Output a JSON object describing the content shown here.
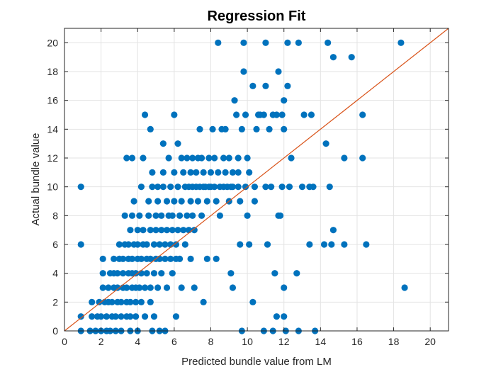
{
  "chart_data": {
    "type": "scatter",
    "title": "Regression Fit",
    "xlabel": "Predicted bundle value from LM",
    "ylabel": "Actual bundle value",
    "xlim": [
      0,
      21
    ],
    "ylim": [
      0,
      21
    ],
    "xticks": [
      0,
      2,
      4,
      6,
      8,
      10,
      12,
      14,
      16,
      18,
      20
    ],
    "yticks": [
      0,
      2,
      4,
      6,
      8,
      10,
      12,
      14,
      16,
      18,
      20
    ],
    "grid": true,
    "colors": {
      "points": "#0072BD",
      "line": "#D95319"
    },
    "reference_line": {
      "type": "identity",
      "from": [
        0,
        0
      ],
      "to": [
        21,
        21
      ]
    },
    "series": [
      {
        "points": [
          [
            0.9,
            10
          ],
          [
            0.9,
            6
          ],
          [
            0.9,
            1
          ],
          [
            0.9,
            0
          ],
          [
            1.4,
            0
          ],
          [
            1.5,
            1
          ],
          [
            1.5,
            2
          ],
          [
            1.7,
            0
          ],
          [
            1.8,
            1
          ],
          [
            1.9,
            2
          ],
          [
            2.0,
            0
          ],
          [
            2.0,
            1
          ],
          [
            2.1,
            3
          ],
          [
            2.2,
            2
          ],
          [
            2.1,
            4
          ],
          [
            2.1,
            5
          ],
          [
            2.3,
            0
          ],
          [
            2.3,
            1
          ],
          [
            2.4,
            2
          ],
          [
            2.4,
            3
          ],
          [
            2.5,
            4
          ],
          [
            2.5,
            0
          ],
          [
            2.6,
            1
          ],
          [
            2.6,
            2
          ],
          [
            2.7,
            3
          ],
          [
            2.7,
            4
          ],
          [
            2.7,
            5
          ],
          [
            2.8,
            0
          ],
          [
            2.8,
            1
          ],
          [
            2.9,
            2
          ],
          [
            2.9,
            3
          ],
          [
            2.9,
            4
          ],
          [
            3.0,
            5
          ],
          [
            3.0,
            6
          ],
          [
            3.1,
            0
          ],
          [
            3.1,
            1
          ],
          [
            3.1,
            2
          ],
          [
            3.2,
            3
          ],
          [
            3.2,
            4
          ],
          [
            3.2,
            5
          ],
          [
            3.3,
            8
          ],
          [
            3.3,
            6
          ],
          [
            3.4,
            1
          ],
          [
            3.4,
            2
          ],
          [
            3.4,
            3
          ],
          [
            3.5,
            4
          ],
          [
            3.5,
            5
          ],
          [
            3.5,
            6
          ],
          [
            3.4,
            12
          ],
          [
            3.6,
            0
          ],
          [
            3.6,
            1
          ],
          [
            3.6,
            2
          ],
          [
            3.6,
            7
          ],
          [
            3.7,
            3
          ],
          [
            3.7,
            4
          ],
          [
            3.7,
            5
          ],
          [
            3.7,
            8
          ],
          [
            3.7,
            12
          ],
          [
            3.8,
            6
          ],
          [
            3.8,
            9
          ],
          [
            3.9,
            1
          ],
          [
            3.9,
            2
          ],
          [
            3.9,
            3
          ],
          [
            3.9,
            4
          ],
          [
            4.0,
            0
          ],
          [
            4.0,
            5
          ],
          [
            4.0,
            6
          ],
          [
            4.0,
            7
          ],
          [
            4.1,
            8
          ],
          [
            4.1,
            3
          ],
          [
            4.2,
            2
          ],
          [
            4.2,
            4
          ],
          [
            4.2,
            5
          ],
          [
            4.2,
            10
          ],
          [
            4.3,
            6
          ],
          [
            4.3,
            7
          ],
          [
            4.3,
            12
          ],
          [
            4.4,
            1
          ],
          [
            4.4,
            3
          ],
          [
            4.4,
            15
          ],
          [
            4.5,
            4
          ],
          [
            4.5,
            5
          ],
          [
            4.5,
            6
          ],
          [
            4.6,
            8
          ],
          [
            4.6,
            9
          ],
          [
            4.7,
            2
          ],
          [
            4.7,
            3
          ],
          [
            4.7,
            5
          ],
          [
            4.7,
            7
          ],
          [
            4.7,
            14
          ],
          [
            4.8,
            10
          ],
          [
            4.8,
            11
          ],
          [
            4.8,
            0
          ],
          [
            4.9,
            1
          ],
          [
            4.9,
            4
          ],
          [
            4.9,
            6
          ],
          [
            5.0,
            5
          ],
          [
            5.0,
            8
          ],
          [
            5.0,
            7
          ],
          [
            5.1,
            9
          ],
          [
            5.1,
            10
          ],
          [
            5.1,
            3
          ],
          [
            5.2,
            6
          ],
          [
            5.2,
            5
          ],
          [
            5.2,
            0
          ],
          [
            5.3,
            4
          ],
          [
            5.3,
            7
          ],
          [
            5.3,
            8
          ],
          [
            5.4,
            10
          ],
          [
            5.4,
            11
          ],
          [
            5.4,
            13
          ],
          [
            5.5,
            5
          ],
          [
            5.5,
            6
          ],
          [
            5.5,
            0
          ],
          [
            5.6,
            3
          ],
          [
            5.6,
            7
          ],
          [
            5.6,
            9
          ],
          [
            5.7,
            8
          ],
          [
            5.7,
            12
          ],
          [
            5.8,
            5
          ],
          [
            5.8,
            6
          ],
          [
            5.8,
            10
          ],
          [
            5.9,
            4
          ],
          [
            5.9,
            7
          ],
          [
            5.9,
            8
          ],
          [
            6.0,
            11
          ],
          [
            6.0,
            9
          ],
          [
            6.0,
            15
          ],
          [
            6.1,
            6
          ],
          [
            6.1,
            5
          ],
          [
            6.1,
            1
          ],
          [
            6.2,
            7
          ],
          [
            6.2,
            10
          ],
          [
            6.2,
            13
          ],
          [
            6.3,
            8
          ],
          [
            6.3,
            5
          ],
          [
            6.4,
            9
          ],
          [
            6.4,
            12
          ],
          [
            6.4,
            3
          ],
          [
            6.5,
            11
          ],
          [
            6.5,
            7
          ],
          [
            6.6,
            10
          ],
          [
            6.6,
            6
          ],
          [
            6.7,
            8
          ],
          [
            6.7,
            12
          ],
          [
            6.8,
            10
          ],
          [
            6.8,
            7
          ],
          [
            6.9,
            11
          ],
          [
            6.9,
            9
          ],
          [
            6.9,
            5
          ],
          [
            7.0,
            12
          ],
          [
            7.0,
            10
          ],
          [
            7.0,
            8
          ],
          [
            7.1,
            7
          ],
          [
            7.1,
            3
          ],
          [
            7.2,
            11
          ],
          [
            7.2,
            10
          ],
          [
            7.3,
            12
          ],
          [
            7.3,
            9
          ],
          [
            7.4,
            14
          ],
          [
            7.4,
            10
          ],
          [
            7.5,
            8
          ],
          [
            7.5,
            12
          ],
          [
            7.6,
            11
          ],
          [
            7.6,
            10
          ],
          [
            7.6,
            2
          ],
          [
            7.7,
            10
          ],
          [
            7.8,
            9
          ],
          [
            7.8,
            5
          ],
          [
            7.9,
            12
          ],
          [
            7.9,
            10
          ],
          [
            8.0,
            11
          ],
          [
            8.0,
            10
          ],
          [
            8.1,
            14
          ],
          [
            8.2,
            10
          ],
          [
            8.2,
            12
          ],
          [
            8.3,
            9
          ],
          [
            8.3,
            5
          ],
          [
            8.4,
            20
          ],
          [
            8.4,
            11
          ],
          [
            8.5,
            10
          ],
          [
            8.5,
            8
          ],
          [
            8.6,
            14
          ],
          [
            8.7,
            10
          ],
          [
            8.7,
            12
          ],
          [
            8.8,
            11
          ],
          [
            8.8,
            14
          ],
          [
            8.9,
            10
          ],
          [
            9.0,
            12
          ],
          [
            9.0,
            9
          ],
          [
            9.1,
            10
          ],
          [
            9.1,
            4
          ],
          [
            9.2,
            10
          ],
          [
            9.2,
            11
          ],
          [
            9.2,
            3
          ],
          [
            9.3,
            16
          ],
          [
            9.4,
            15
          ],
          [
            9.5,
            10
          ],
          [
            9.5,
            11
          ],
          [
            9.5,
            12
          ],
          [
            9.6,
            9
          ],
          [
            9.6,
            6
          ],
          [
            9.7,
            14
          ],
          [
            9.8,
            20
          ],
          [
            9.8,
            18
          ],
          [
            9.9,
            10
          ],
          [
            9.9,
            15
          ],
          [
            9.7,
            0
          ],
          [
            10.0,
            12
          ],
          [
            10.0,
            8
          ],
          [
            10.1,
            11
          ],
          [
            10.1,
            6
          ],
          [
            10.3,
            17
          ],
          [
            10.3,
            2
          ],
          [
            10.4,
            10
          ],
          [
            10.4,
            9
          ],
          [
            10.5,
            14
          ],
          [
            10.6,
            15
          ],
          [
            10.7,
            15
          ],
          [
            10.9,
            15
          ],
          [
            10.9,
            0
          ],
          [
            11.0,
            17
          ],
          [
            11.0,
            20
          ],
          [
            11.0,
            10
          ],
          [
            11.1,
            6
          ],
          [
            11.2,
            14
          ],
          [
            11.3,
            10
          ],
          [
            11.4,
            0
          ],
          [
            11.4,
            15
          ],
          [
            11.5,
            4
          ],
          [
            11.6,
            1
          ],
          [
            11.6,
            15
          ],
          [
            11.7,
            18
          ],
          [
            11.7,
            8
          ],
          [
            11.8,
            8
          ],
          [
            11.9,
            10
          ],
          [
            11.9,
            15
          ],
          [
            12.0,
            14
          ],
          [
            12.0,
            3
          ],
          [
            12.0,
            1
          ],
          [
            12.0,
            16
          ],
          [
            12.1,
            0
          ],
          [
            12.2,
            17
          ],
          [
            12.2,
            20
          ],
          [
            12.3,
            10
          ],
          [
            12.4,
            12
          ],
          [
            12.7,
            4
          ],
          [
            12.8,
            20
          ],
          [
            12.8,
            0
          ],
          [
            13.0,
            10
          ],
          [
            13.1,
            15
          ],
          [
            13.4,
            6
          ],
          [
            13.4,
            10
          ],
          [
            13.5,
            15
          ],
          [
            13.6,
            10
          ],
          [
            13.7,
            0
          ],
          [
            14.2,
            6
          ],
          [
            14.3,
            13
          ],
          [
            14.4,
            20
          ],
          [
            14.5,
            10
          ],
          [
            14.6,
            6
          ],
          [
            14.7,
            19
          ],
          [
            14.7,
            7
          ],
          [
            15.3,
            12
          ],
          [
            15.3,
            6
          ],
          [
            15.7,
            19
          ],
          [
            16.3,
            15
          ],
          [
            16.3,
            12
          ],
          [
            16.5,
            6
          ],
          [
            18.4,
            20
          ],
          [
            18.6,
            3
          ]
        ]
      }
    ]
  }
}
